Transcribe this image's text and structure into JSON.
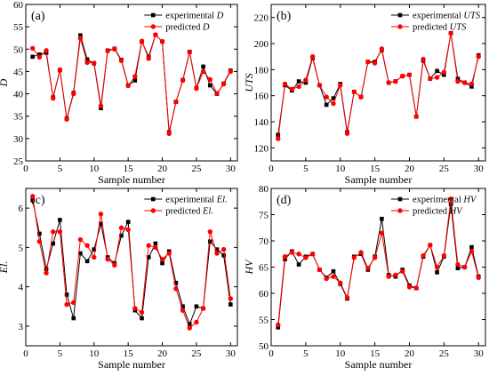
{
  "colors": {
    "experimental": "#000000",
    "predicted": "#ff0000"
  },
  "chart_data": [
    {
      "type": "line",
      "panel_tag": "(a)",
      "xlabel": "Sample number",
      "ylabel": "D",
      "xlim": [
        0,
        31
      ],
      "ylim": [
        25,
        60
      ],
      "xticks": [
        0,
        5,
        10,
        15,
        20,
        25,
        30
      ],
      "yticks": [
        25,
        30,
        35,
        40,
        45,
        50,
        55,
        60
      ],
      "legend": {
        "position": "top-right"
      },
      "x": [
        1,
        2,
        3,
        4,
        5,
        6,
        7,
        8,
        9,
        10,
        11,
        12,
        13,
        14,
        15,
        16,
        17,
        18,
        19,
        20,
        21,
        22,
        23,
        24,
        25,
        26,
        27,
        28,
        29,
        30
      ],
      "series": [
        {
          "name": "experimental D",
          "marker": "square",
          "color": "#000000",
          "values": [
            48.3,
            48.8,
            49.2,
            39.2,
            45.3,
            34.5,
            40.2,
            53.1,
            47.7,
            46.8,
            36.8,
            49.7,
            50.1,
            47.6,
            41.9,
            43.0,
            51.7,
            48.3,
            53.2,
            51.7,
            31.4,
            38.2,
            43.1,
            49.4,
            41.3,
            46.1,
            41.9,
            40.0,
            42.3,
            45.2
          ]
        },
        {
          "name": "predicted D",
          "marker": "circle",
          "color": "#ff0000",
          "values": [
            50.2,
            48.2,
            49.7,
            39.0,
            45.4,
            34.3,
            40.0,
            52.4,
            47.0,
            46.9,
            37.3,
            49.6,
            50.0,
            47.4,
            41.8,
            43.9,
            51.8,
            47.9,
            53.2,
            51.7,
            31.1,
            38.2,
            43.0,
            49.3,
            41.2,
            45.0,
            43.2,
            40.1,
            42.2,
            45.0
          ]
        }
      ]
    },
    {
      "type": "line",
      "panel_tag": "(b)",
      "xlabel": "Sample number",
      "ylabel": "UTS",
      "xlim": [
        0,
        31
      ],
      "ylim": [
        110,
        230
      ],
      "xticks": [
        0,
        5,
        10,
        15,
        20,
        25,
        30
      ],
      "yticks": [
        120,
        140,
        160,
        180,
        200,
        220
      ],
      "legend": {
        "position": "top-right"
      },
      "x": [
        1,
        2,
        3,
        4,
        5,
        6,
        7,
        8,
        9,
        10,
        11,
        12,
        13,
        14,
        15,
        16,
        17,
        18,
        19,
        20,
        21,
        22,
        23,
        24,
        25,
        26,
        27,
        28,
        29,
        30
      ],
      "series": [
        {
          "name": "experimental UTS",
          "marker": "square",
          "color": "#000000",
          "values": [
            130,
            168,
            164,
            171,
            170,
            189,
            168,
            153,
            158,
            169,
            132,
            163,
            159,
            186,
            186,
            195,
            170,
            171,
            175,
            176,
            144,
            187,
            173,
            179,
            176,
            208,
            173,
            170,
            167,
            191
          ]
        },
        {
          "name": "predicted UTS",
          "marker": "circle",
          "color": "#ff0000",
          "values": [
            127,
            169,
            165,
            167,
            172,
            190,
            168,
            159,
            154,
            168,
            131,
            163,
            159,
            186,
            185,
            196,
            170,
            171,
            175,
            176,
            144,
            188,
            173,
            174,
            178,
            208,
            171,
            170,
            169,
            190
          ]
        }
      ]
    },
    {
      "type": "line",
      "panel_tag": "(c)",
      "xlabel": "Sample number",
      "ylabel": "El.",
      "xlim": [
        0,
        31
      ],
      "ylim": [
        2.5,
        6.5
      ],
      "xticks": [
        0,
        5,
        10,
        15,
        20,
        25,
        30
      ],
      "yticks": [
        3,
        4,
        5,
        6
      ],
      "legend": {
        "position": "top-right"
      },
      "x": [
        1,
        2,
        3,
        4,
        5,
        6,
        7,
        8,
        9,
        10,
        11,
        12,
        13,
        14,
        15,
        16,
        17,
        18,
        19,
        20,
        21,
        22,
        23,
        24,
        25,
        26,
        27,
        28,
        29,
        30
      ],
      "series": [
        {
          "name": "experimental El.",
          "marker": "square",
          "color": "#000000",
          "values": [
            6.2,
            5.35,
            4.45,
            5.1,
            5.7,
            3.8,
            3.2,
            4.85,
            4.65,
            4.95,
            5.6,
            4.75,
            4.6,
            5.3,
            5.65,
            3.4,
            3.2,
            4.75,
            5.1,
            4.6,
            4.9,
            4.1,
            3.5,
            3.05,
            3.5,
            3.45,
            5.15,
            4.95,
            4.8,
            3.55
          ]
        },
        {
          "name": "predicted El.",
          "marker": "circle",
          "color": "#ff0000",
          "values": [
            6.3,
            5.15,
            4.35,
            5.4,
            5.4,
            3.55,
            3.6,
            5.2,
            5.05,
            4.75,
            5.85,
            4.7,
            4.55,
            5.5,
            5.45,
            3.45,
            3.35,
            5.05,
            5.0,
            4.7,
            4.85,
            3.95,
            3.4,
            2.95,
            3.1,
            3.45,
            5.4,
            4.85,
            4.95,
            3.7
          ]
        }
      ]
    },
    {
      "type": "line",
      "panel_tag": "(d)",
      "xlabel": "Sample number",
      "ylabel": "HV",
      "xlim": [
        0,
        31
      ],
      "ylim": [
        50,
        80
      ],
      "xticks": [
        0,
        5,
        10,
        15,
        20,
        25,
        30
      ],
      "yticks": [
        50,
        55,
        60,
        65,
        70,
        75,
        80
      ],
      "legend": {
        "position": "top-right"
      },
      "x": [
        1,
        2,
        3,
        4,
        5,
        6,
        7,
        8,
        9,
        10,
        11,
        12,
        13,
        14,
        15,
        16,
        17,
        18,
        19,
        20,
        21,
        22,
        23,
        24,
        25,
        26,
        27,
        28,
        29,
        30
      ],
      "series": [
        {
          "name": "experimental HV",
          "marker": "square",
          "color": "#000000",
          "values": [
            53.5,
            66.5,
            68.0,
            65.5,
            67.0,
            67.5,
            64.5,
            63.0,
            64.2,
            61.8,
            59.0,
            67.0,
            67.5,
            64.5,
            67.0,
            74.2,
            63.5,
            63.2,
            64.5,
            61.5,
            61.0,
            67.0,
            69.2,
            64.0,
            67.0,
            77.0,
            64.8,
            65.0,
            68.8,
            63.2
          ]
        },
        {
          "name": "predicted HV",
          "marker": "circle",
          "color": "#ff0000",
          "values": [
            54.0,
            67.0,
            67.8,
            67.5,
            66.8,
            67.5,
            64.5,
            62.8,
            63.2,
            62.0,
            59.2,
            66.8,
            67.8,
            64.8,
            66.8,
            71.5,
            63.2,
            63.5,
            64.2,
            61.2,
            61.0,
            67.2,
            69.2,
            65.0,
            67.2,
            78.0,
            65.5,
            65.0,
            68.0,
            63.0
          ]
        }
      ]
    }
  ]
}
